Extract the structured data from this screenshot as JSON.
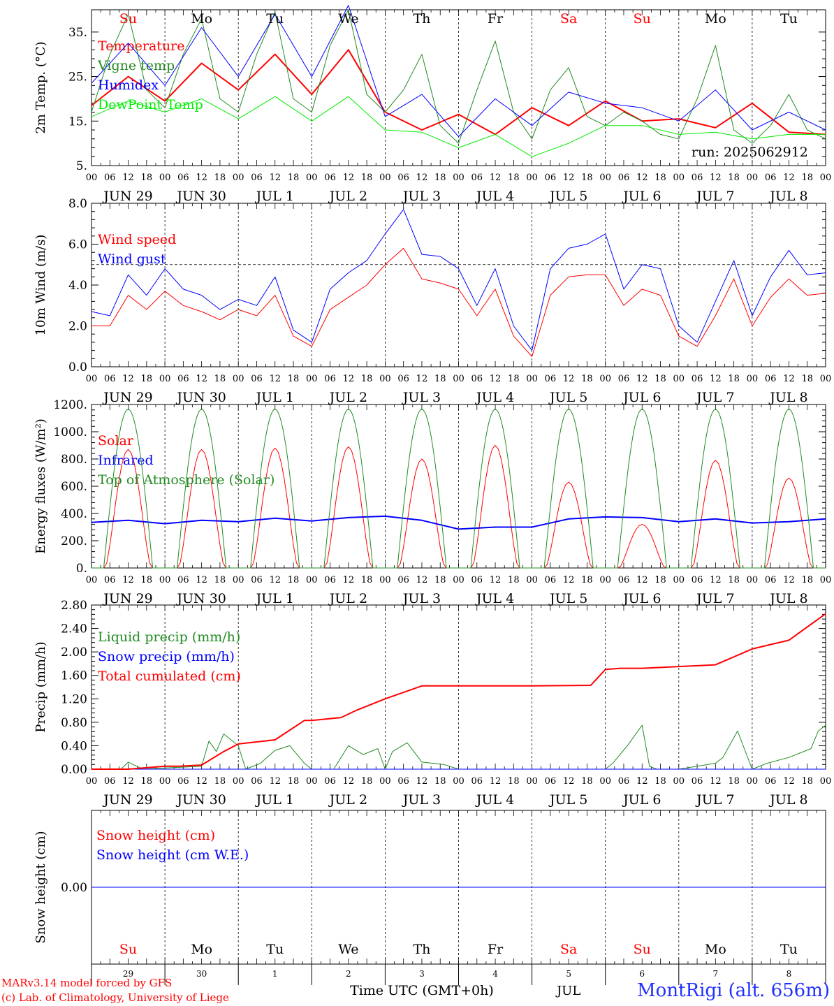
{
  "meta": {
    "run_label": "run: 2025062912",
    "credit_line1": "MARv3.14 model forced by GFS",
    "credit_line2": "(c) Lab. of Climatology, University of Liege",
    "station": "MontRigi (alt. 656m)",
    "time_axis_label": "Time UTC (GMT+0h)",
    "month_label": "JUL"
  },
  "time_axis": {
    "hour_ticks": [
      "00",
      "06",
      "12",
      "18"
    ],
    "final_hour": "00",
    "dates": [
      "JUN 29",
      "JUN 30",
      "JUL  1",
      "JUL  2",
      "JUL  3",
      "JUL  4",
      "JUL  5",
      "JUL  6",
      "JUL  7",
      "JUL  8"
    ],
    "weekdays": [
      "Su",
      "Mo",
      "Tu",
      "We",
      "Th",
      "Fr",
      "Sa",
      "Su",
      "Mo",
      "Tu"
    ],
    "weekday_colors": [
      "#ff0000",
      "#000000",
      "#000000",
      "#000000",
      "#000000",
      "#000000",
      "#ff0000",
      "#ff0000",
      "#000000",
      "#000000"
    ],
    "day_numbers": [
      "29",
      "30",
      "1",
      "2",
      "3",
      "4",
      "5",
      "6",
      "7",
      "8"
    ]
  },
  "chart_data": [
    {
      "type": "line",
      "ylabel": "2m Temp. (°C)",
      "ylim": [
        5,
        40
      ],
      "yticks": [
        "5.",
        "15.",
        "25.",
        "35."
      ],
      "ytick_values": [
        5,
        15,
        25,
        35
      ],
      "grid": "dashed vertical at 00 UTC",
      "series": [
        {
          "name": "Temperature",
          "color": "#ff0000",
          "width": 2,
          "x": [
            0,
            0.5,
            1,
            1.5,
            2,
            2.5,
            3,
            3.5,
            4,
            4.5,
            5,
            5.5,
            6,
            6.5,
            7,
            7.5,
            8,
            8.5,
            9,
            9.5,
            10
          ],
          "y": [
            18.5,
            25,
            19.5,
            28,
            22,
            30,
            21,
            31,
            17,
            13,
            16.5,
            12,
            18,
            14,
            19.5,
            15,
            15.5,
            13.5,
            19,
            12.5,
            12
          ]
        },
        {
          "name": "Vigne temp",
          "color": "#228b22",
          "width": 1,
          "x": [
            0,
            0.25,
            0.5,
            0.75,
            1,
            1.25,
            1.5,
            1.75,
            2,
            2.25,
            2.5,
            2.75,
            3,
            3.25,
            3.5,
            3.75,
            4,
            4.25,
            4.5,
            4.75,
            5,
            5.25,
            5.5,
            5.75,
            6,
            6.25,
            6.5,
            6.75,
            7,
            7.25,
            7.5,
            7.75,
            8,
            8.25,
            8.5,
            8.75,
            9,
            9.25,
            9.5,
            9.75,
            10
          ],
          "y": [
            17,
            30,
            39,
            22,
            18,
            30,
            38,
            20,
            17,
            30,
            39.5,
            20,
            17,
            32,
            40,
            21,
            17,
            22,
            30,
            14,
            10,
            22,
            33,
            17,
            11,
            22,
            27,
            16,
            14,
            17,
            15,
            12,
            11,
            20,
            32,
            13,
            10,
            14,
            21,
            13,
            11
          ]
        },
        {
          "name": "Humidex",
          "color": "#0000ff",
          "width": 1,
          "x": [
            0,
            0.5,
            1,
            1.5,
            2,
            2.5,
            3,
            3.5,
            4,
            4.5,
            5,
            5.5,
            6,
            6.5,
            7,
            7.5,
            8,
            8.5,
            9,
            9.5,
            10
          ],
          "y": [
            23.5,
            32.5,
            23,
            36,
            25,
            39,
            25,
            41,
            16,
            21,
            11.5,
            20,
            14,
            21.5,
            19,
            18,
            15,
            22,
            13,
            17,
            13
          ]
        },
        {
          "name": "DewPoint Temp",
          "color": "#00ee00",
          "width": 1,
          "x": [
            0,
            0.5,
            1,
            1.5,
            2,
            2.5,
            3,
            3.5,
            4,
            4.5,
            5,
            5.5,
            6,
            6.5,
            7,
            7.5,
            8,
            8.5,
            9,
            9.5,
            10
          ],
          "y": [
            16,
            19.5,
            17,
            20,
            15.5,
            20.5,
            15,
            20.5,
            13,
            12.5,
            9,
            12,
            7,
            10,
            14,
            14,
            12,
            12.5,
            11,
            12,
            12
          ]
        }
      ]
    },
    {
      "type": "line",
      "ylabel": "10m Wind (m/s)",
      "ylim": [
        0,
        8
      ],
      "yticks": [
        "0.0",
        "2.0",
        "4.0",
        "6.0",
        "8.0"
      ],
      "ytick_values": [
        0,
        2,
        4,
        6,
        8
      ],
      "threshold": 5,
      "series": [
        {
          "name": "Wind speed",
          "color": "#ff0000",
          "width": 1,
          "x": [
            0,
            0.25,
            0.5,
            0.75,
            1,
            1.25,
            1.5,
            1.75,
            2,
            2.25,
            2.5,
            2.75,
            3,
            3.25,
            3.5,
            3.75,
            4,
            4.25,
            4.5,
            4.75,
            5,
            5.25,
            5.5,
            5.75,
            6,
            6.25,
            6.5,
            6.75,
            7,
            7.25,
            7.5,
            7.75,
            8,
            8.25,
            8.5,
            8.75,
            9,
            9.25,
            9.5,
            9.75,
            10
          ],
          "y": [
            2,
            2,
            3.5,
            2.8,
            3.7,
            3,
            2.7,
            2.3,
            2.8,
            2.5,
            3.5,
            1.5,
            1,
            2.8,
            3.4,
            4,
            5,
            5.8,
            4.3,
            4.1,
            3.8,
            2.5,
            3.8,
            1.5,
            0.5,
            3.5,
            4.4,
            4.5,
            4.5,
            3,
            3.8,
            3.5,
            1.5,
            1,
            2.5,
            4.3,
            2,
            3.4,
            4.3,
            3.5,
            3.6
          ]
        },
        {
          "name": "Wind gust",
          "color": "#0000ff",
          "width": 1,
          "x": [
            0,
            0.25,
            0.5,
            0.75,
            1,
            1.25,
            1.5,
            1.75,
            2,
            2.25,
            2.5,
            2.75,
            3,
            3.25,
            3.5,
            3.75,
            4,
            4.25,
            4.5,
            4.75,
            5,
            5.25,
            5.5,
            5.75,
            6,
            6.25,
            6.5,
            6.75,
            7,
            7.25,
            7.5,
            7.75,
            8,
            8.25,
            8.5,
            8.75,
            9,
            9.25,
            9.5,
            9.75,
            10
          ],
          "y": [
            2.7,
            2.5,
            4.5,
            3.5,
            4.8,
            3.8,
            3.5,
            2.8,
            3.3,
            3,
            4.4,
            1.8,
            1.2,
            3.8,
            4.6,
            5.2,
            6.5,
            7.7,
            5.5,
            5.4,
            4.8,
            3,
            4.8,
            2,
            0.8,
            4.8,
            5.8,
            6,
            6.5,
            3.8,
            5,
            4.8,
            2,
            1.2,
            3.2,
            5.2,
            2.5,
            4.4,
            5.7,
            4.5,
            4.6
          ]
        }
      ]
    },
    {
      "type": "line",
      "ylabel": "Energy fluxes (W/m²)",
      "ylim": [
        0,
        1200
      ],
      "yticks": [
        "0.",
        "200.",
        "400.",
        "600.",
        "800.",
        "1000.",
        "1200."
      ],
      "ytick_values": [
        0,
        200,
        400,
        600,
        800,
        1000,
        1200
      ],
      "series": [
        {
          "name": "Solar",
          "color": "#ff0000",
          "width": 1,
          "day_peaks": [
            870,
            870,
            880,
            890,
            800,
            900,
            630,
            320,
            790,
            660
          ]
        },
        {
          "name": "Infrared",
          "color": "#0000ff",
          "width": 2,
          "x": [
            0,
            0.5,
            1,
            1.5,
            2,
            2.5,
            3,
            3.5,
            4,
            4.5,
            5,
            5.5,
            6,
            6.5,
            7,
            7.5,
            8,
            8.5,
            9,
            9.5,
            10
          ],
          "y": [
            335,
            350,
            325,
            350,
            340,
            365,
            345,
            370,
            380,
            350,
            285,
            300,
            300,
            360,
            375,
            370,
            340,
            360,
            330,
            340,
            360
          ]
        },
        {
          "name": "Top of Atmosphere (Solar)",
          "color": "#228b22",
          "width": 1,
          "day_peak": 1165
        }
      ]
    },
    {
      "type": "line",
      "ylabel": "Precip (mm/h)",
      "ylim": [
        0,
        2.8
      ],
      "yticks": [
        "0.00",
        "0.40",
        "0.80",
        "1.20",
        "1.60",
        "2.00",
        "2.40",
        "2.80"
      ],
      "ytick_values": [
        0,
        0.4,
        0.8,
        1.2,
        1.6,
        2.0,
        2.4,
        2.8
      ],
      "series": [
        {
          "name": "Liquid precip (mm/h)",
          "color": "#228b22",
          "width": 1,
          "x": [
            0,
            0.4,
            0.5,
            0.7,
            1,
            1.5,
            1.6,
            1.7,
            1.8,
            2,
            2.1,
            2.3,
            2.5,
            2.7,
            2.9,
            3,
            3.3,
            3.5,
            3.7,
            3.9,
            4,
            4.1,
            4.3,
            4.5,
            4.8,
            5,
            7,
            7.1,
            7.3,
            7.5,
            7.6,
            7.7,
            8,
            8.5,
            8.6,
            8.8,
            9,
            9.2,
            9.5,
            9.8,
            9.9,
            10
          ],
          "y": [
            0,
            0,
            0.12,
            0,
            0.02,
            0.05,
            0.48,
            0.3,
            0.6,
            0.4,
            0,
            0.1,
            0.32,
            0.4,
            0.1,
            0,
            0,
            0.4,
            0.25,
            0.35,
            0,
            0.3,
            0.45,
            0.12,
            0.08,
            0,
            0,
            0.1,
            0.4,
            0.75,
            0.05,
            0,
            0,
            0.1,
            0.2,
            0.65,
            0,
            0.1,
            0.2,
            0.35,
            0.65,
            0.75
          ]
        },
        {
          "name": "Snow precip (mm/h)",
          "color": "#0000ff",
          "width": 1,
          "x": [
            0,
            10
          ],
          "y": [
            0,
            0
          ]
        },
        {
          "name": "Total cumulated (cm)",
          "color": "#ff0000",
          "width": 2,
          "x": [
            0,
            0.5,
            1,
            1.2,
            1.5,
            1.8,
            2,
            2.5,
            2.9,
            3,
            3.4,
            3.6,
            4,
            4.5,
            5,
            6,
            6.8,
            7,
            7.2,
            7.5,
            8,
            8.5,
            9,
            9.5,
            10
          ],
          "y": [
            0,
            0,
            0.05,
            0.05,
            0.07,
            0.3,
            0.43,
            0.5,
            0.83,
            0.83,
            0.88,
            1.0,
            1.2,
            1.42,
            1.42,
            1.42,
            1.43,
            1.7,
            1.72,
            1.72,
            1.75,
            1.78,
            2.05,
            2.2,
            2.65
          ]
        }
      ]
    },
    {
      "type": "line",
      "ylabel": "Snow height (cm)",
      "ylim": [
        -1,
        1
      ],
      "yticks": [
        "0.00"
      ],
      "ytick_values": [
        0
      ],
      "series": [
        {
          "name": "Snow height (cm)",
          "color": "#ff0000",
          "width": 1,
          "x": [
            0,
            10
          ],
          "y": [
            0,
            0
          ]
        },
        {
          "name": "Snow height (cm W.E.)",
          "color": "#0000ff",
          "width": 1,
          "x": [
            0,
            10
          ],
          "y": [
            0,
            0
          ]
        }
      ]
    }
  ]
}
